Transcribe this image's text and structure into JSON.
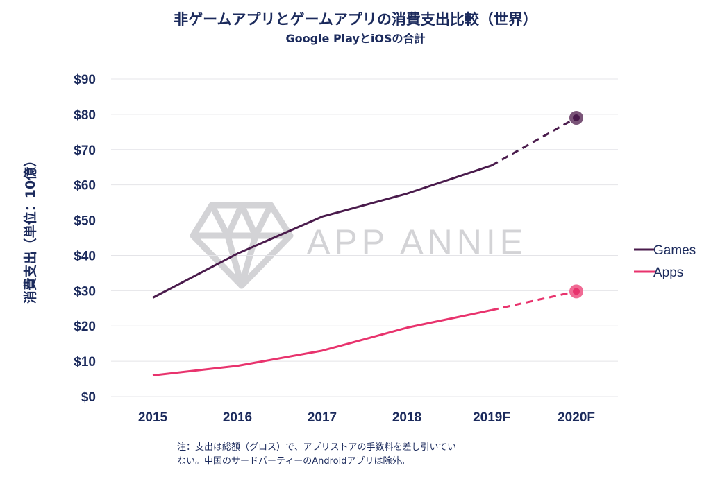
{
  "title": "非ゲームアプリとゲームアプリの消費支出比較（世界）",
  "subtitle": "Google PlayとiOSの合計",
  "watermark": "APP ANNIE",
  "note": {
    "line1": "注：支出は総額（グロス）で、アプリストアの手数料を差し引いてい",
    "line2": "ない。中国のサードパーティーのAndroidアプリは除外。"
  },
  "chart_data": {
    "type": "line",
    "title": "非ゲームアプリとゲームアプリの消費支出比較（世界）",
    "subtitle": "Google PlayとiOSの合計",
    "xlabel": "",
    "ylabel": "消費支出（単位：10億）",
    "categories": [
      "2015",
      "2016",
      "2017",
      "2018",
      "2019F",
      "2020F"
    ],
    "yticks": [
      "$0",
      "$10",
      "$20",
      "$30",
      "$40",
      "$50",
      "$60",
      "$70",
      "$80",
      "$90"
    ],
    "ylim": [
      0,
      90
    ],
    "grid": true,
    "legend_position": "right",
    "forecast_from_index": 4,
    "series": [
      {
        "name": "Games",
        "values": [
          28,
          40.5,
          51,
          57.5,
          65.5,
          79
        ],
        "color": "#4a1b4c",
        "marker_color": "#7a5478"
      },
      {
        "name": "Apps",
        "values": [
          6,
          8.7,
          13,
          19.5,
          24.5,
          29.8
        ],
        "color": "#e8336d",
        "marker_color": "#f06a94"
      }
    ]
  }
}
